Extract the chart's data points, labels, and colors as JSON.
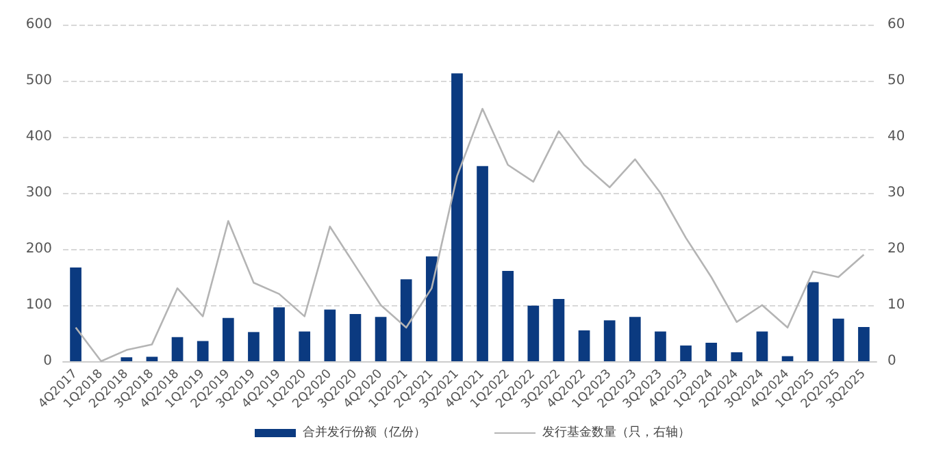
{
  "chart_data": {
    "type": "bar",
    "categories": [
      "4Q2017",
      "1Q2018",
      "2Q2018",
      "3Q2018",
      "4Q2018",
      "1Q2019",
      "2Q2019",
      "3Q2019",
      "4Q2019",
      "1Q2020",
      "2Q2020",
      "3Q2020",
      "4Q2020",
      "1Q2021",
      "2Q2021",
      "3Q2021",
      "4Q2021",
      "1Q2022",
      "2Q2022",
      "3Q2022",
      "4Q2022",
      "1Q2023",
      "2Q2023",
      "3Q2023",
      "4Q2023",
      "1Q2024",
      "2Q2024",
      "3Q2024",
      "4Q2024",
      "1Q2025",
      "2Q2025",
      "3Q2025"
    ],
    "series": [
      {
        "name": "合并发行份额（亿份）",
        "color": "#0b3a80",
        "values": [
          167,
          0,
          7,
          8,
          43,
          36,
          77,
          52,
          96,
          53,
          92,
          84,
          79,
          146,
          187,
          513,
          348,
          161,
          99,
          111,
          55,
          73,
          79,
          53,
          28,
          33,
          16,
          53,
          9,
          141,
          76,
          61
        ]
      },
      {
        "name": "发行基金数量（只，右轴）",
        "type": "line",
        "axis": "y2",
        "color": "#b4b4b4",
        "values": [
          6,
          0,
          2,
          3,
          13,
          8,
          25,
          14,
          12,
          8,
          24,
          17,
          10,
          6,
          13,
          33,
          45,
          35,
          32,
          41,
          35,
          31,
          36,
          30,
          22,
          15,
          7,
          10,
          6,
          16,
          15,
          19
        ]
      }
    ],
    "ylim": [
      0,
      600
    ],
    "yticks": [
      0,
      100,
      200,
      300,
      400,
      500,
      600
    ],
    "y2lim": [
      0,
      60
    ],
    "y2ticks": [
      0,
      10,
      20,
      30,
      40,
      50,
      60
    ],
    "grid": "y",
    "legend": "bottom",
    "marker": "none",
    "line_style": "solid"
  }
}
